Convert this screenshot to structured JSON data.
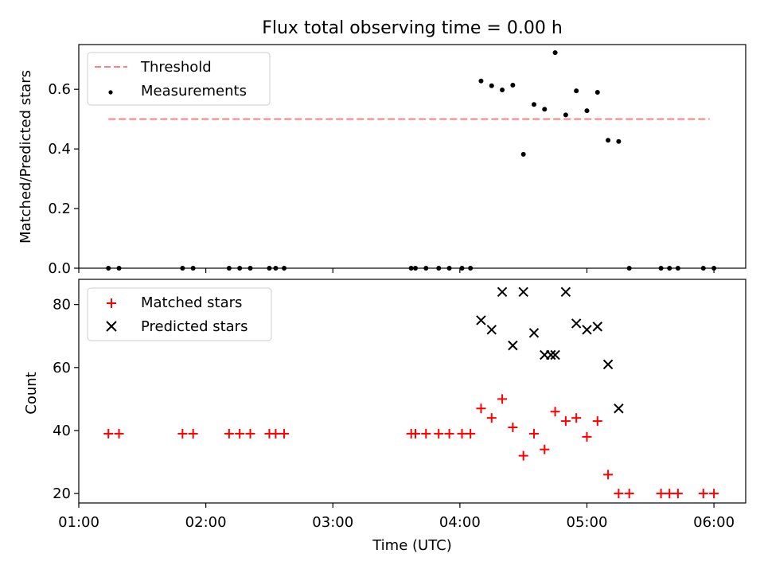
{
  "title": "Flux total observing time = 0.00 h",
  "xlabel": "Time (UTC)",
  "x_ticks": [
    "01:00",
    "02:00",
    "03:00",
    "04:00",
    "05:00",
    "06:00"
  ],
  "colors": {
    "threshold": "#ff7f7f",
    "measurements": "#000000",
    "matched": "#ff0000",
    "predicted": "#000000"
  },
  "chart_data": [
    {
      "type": "scatter",
      "panel": "top",
      "ylabel": "Matched/Predicted stars",
      "xlim": [
        "01:00",
        "06:15"
      ],
      "ylim": [
        0,
        0.75
      ],
      "y_ticks": [
        "0.0",
        "0.2",
        "0.4",
        "0.6"
      ],
      "legend": {
        "placement": "top-left",
        "entries": [
          "Threshold",
          "Measurements"
        ]
      },
      "threshold": {
        "name": "Threshold",
        "value": 0.5,
        "x_start": "01:14",
        "x_end": "05:58"
      },
      "series": [
        {
          "name": "Measurements",
          "x": [
            "01:14",
            "01:19",
            "01:49",
            "01:54",
            "02:11",
            "02:16",
            "02:21",
            "02:30",
            "02:33",
            "02:37",
            "03:37",
            "03:39",
            "03:44",
            "03:50",
            "03:55",
            "04:01",
            "04:05",
            "04:10",
            "04:15",
            "04:20",
            "04:25",
            "04:30",
            "04:35",
            "04:40",
            "04:45",
            "04:50",
            "04:55",
            "05:00",
            "05:05",
            "05:10",
            "05:15",
            "05:20",
            "05:35",
            "05:39",
            "05:43",
            "05:55",
            "06:00"
          ],
          "y": [
            0,
            0,
            0,
            0,
            0,
            0,
            0,
            0,
            0,
            0,
            0,
            0,
            0,
            0,
            0,
            0,
            0,
            0.628,
            0.612,
            0.598,
            0.614,
            0.382,
            0.549,
            0.533,
            0.723,
            0.514,
            0.595,
            0.528,
            0.59,
            0.429,
            0.425,
            0,
            0,
            0,
            0,
            0,
            0
          ]
        }
      ]
    },
    {
      "type": "scatter",
      "panel": "bottom",
      "ylabel": "Count",
      "xlim": [
        "01:00",
        "06:15"
      ],
      "ylim": [
        17,
        88
      ],
      "y_ticks": [
        "20",
        "40",
        "60",
        "80"
      ],
      "legend": {
        "placement": "top-left",
        "entries": [
          "Matched stars",
          "Predicted stars"
        ]
      },
      "series": [
        {
          "name": "Matched stars",
          "marker": "+",
          "x": [
            "01:14",
            "01:19",
            "01:49",
            "01:54",
            "02:11",
            "02:16",
            "02:21",
            "02:30",
            "02:33",
            "02:37",
            "03:37",
            "03:39",
            "03:44",
            "03:50",
            "03:55",
            "04:01",
            "04:05",
            "04:10",
            "04:15",
            "04:20",
            "04:25",
            "04:30",
            "04:35",
            "04:40",
            "04:45",
            "04:50",
            "04:55",
            "05:00",
            "05:05",
            "05:10",
            "05:15",
            "05:20",
            "05:35",
            "05:39",
            "05:43",
            "05:55",
            "06:00"
          ],
          "y": [
            39,
            39,
            39,
            39,
            39,
            39,
            39,
            39,
            39,
            39,
            39,
            39,
            39,
            39,
            39,
            39,
            39,
            47,
            44,
            50,
            41,
            32,
            39,
            34,
            46,
            43,
            44,
            38,
            43,
            26,
            20,
            20,
            20,
            20,
            20,
            20,
            20
          ]
        },
        {
          "name": "Predicted stars",
          "marker": "x",
          "x": [
            "04:10",
            "04:15",
            "04:20",
            "04:25",
            "04:30",
            "04:35",
            "04:40",
            "04:43",
            "04:45",
            "04:50",
            "04:55",
            "05:00",
            "05:05",
            "05:10",
            "05:15"
          ],
          "y": [
            75,
            72,
            84,
            67,
            84,
            71,
            64,
            64,
            64,
            84,
            74,
            72,
            73,
            61,
            47
          ]
        }
      ]
    }
  ]
}
